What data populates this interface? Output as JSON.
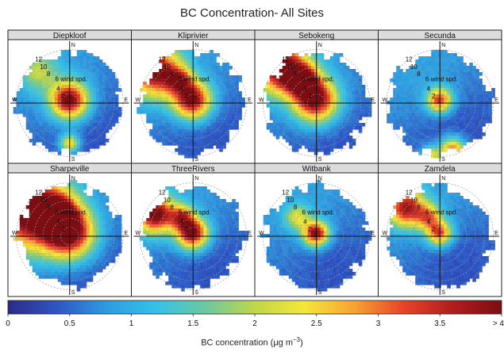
{
  "chart_data": {
    "type": "heatmap",
    "title": "BC Concentration- All Sites",
    "xlabel": "BC concentration",
    "xlabel_unit": "μg m",
    "xlabel_unit_exp": "−3",
    "axis_dirs": {
      "n": "N",
      "s": "S",
      "e": "E",
      "w": "W"
    },
    "wind_label": "6 wind spd.",
    "ring_labels": [
      "2",
      "4",
      "6",
      "8",
      "10",
      "12"
    ],
    "ring_values": [
      2,
      4,
      6,
      8,
      10,
      12
    ],
    "colorbar": {
      "ticks": [
        "0",
        "0.5",
        "1",
        "1.5",
        "2",
        "2.5",
        "3",
        "3.5",
        "> 4"
      ],
      "range": [
        0,
        4
      ],
      "colors": [
        "#2c2a86",
        "#2f56c4",
        "#2f9be0",
        "#34c2e8",
        "#6cc9a0",
        "#c0d64a",
        "#f5e73a",
        "#f6a532",
        "#e8442a",
        "#b01e1e",
        "#7c0d12"
      ]
    },
    "panels": [
      {
        "name": "Diepkloof",
        "hotspots": [
          {
            "dir_deg": 0,
            "speed": 0.5,
            "bc": 4.0,
            "spread": 3
          },
          {
            "dir_deg": 315,
            "speed": 10,
            "bc": 1.8,
            "spread": 3
          },
          {
            "dir_deg": 180,
            "speed": 9,
            "bc": 2.6,
            "spread": 1.5
          }
        ]
      },
      {
        "name": "Kliprivier",
        "hotspots": [
          {
            "dir_deg": 0,
            "speed": 0.5,
            "bc": 3.9,
            "spread": 3
          },
          {
            "dir_deg": 310,
            "speed": 11,
            "bc": 3.8,
            "spread": 4
          },
          {
            "dir_deg": 330,
            "speed": 6,
            "bc": 2.4,
            "spread": 2
          }
        ]
      },
      {
        "name": "Sebokeng",
        "hotspots": [
          {
            "dir_deg": 0,
            "speed": 0.5,
            "bc": 4.0,
            "spread": 3.5
          },
          {
            "dir_deg": 315,
            "speed": 11,
            "bc": 4.0,
            "spread": 4
          },
          {
            "dir_deg": 330,
            "speed": 6,
            "bc": 2.8,
            "spread": 2.5
          }
        ]
      },
      {
        "name": "Secunda",
        "hotspots": [
          {
            "dir_deg": 0,
            "speed": 0.5,
            "bc": 3.2,
            "spread": 2
          },
          {
            "dir_deg": 165,
            "speed": 11,
            "bc": 3.3,
            "spread": 2
          },
          {
            "dir_deg": 190,
            "speed": 12,
            "bc": 2.4,
            "spread": 1.5
          }
        ]
      },
      {
        "name": "Sharpeville",
        "hotspots": [
          {
            "dir_deg": 0,
            "speed": 0.5,
            "bc": 4.0,
            "spread": 4
          },
          {
            "dir_deg": 300,
            "speed": 11,
            "bc": 4.0,
            "spread": 6
          },
          {
            "dir_deg": 330,
            "speed": 6,
            "bc": 3.2,
            "spread": 3
          }
        ]
      },
      {
        "name": "ThreeRivers",
        "hotspots": [
          {
            "dir_deg": 0,
            "speed": 0.5,
            "bc": 3.9,
            "spread": 2.5
          },
          {
            "dir_deg": 300,
            "speed": 10,
            "bc": 4.0,
            "spread": 3
          },
          {
            "dir_deg": 330,
            "speed": 5,
            "bc": 2.6,
            "spread": 2
          }
        ]
      },
      {
        "name": "Witbank",
        "hotspots": [
          {
            "dir_deg": 0,
            "speed": 0.5,
            "bc": 3.8,
            "spread": 2
          },
          {
            "dir_deg": 315,
            "speed": 6,
            "bc": 2.0,
            "spread": 2
          }
        ]
      },
      {
        "name": "Zamdela",
        "hotspots": [
          {
            "dir_deg": 0,
            "speed": 0.5,
            "bc": 3.0,
            "spread": 2
          },
          {
            "dir_deg": 310,
            "speed": 10,
            "bc": 3.5,
            "spread": 3
          },
          {
            "dir_deg": 330,
            "speed": 5,
            "bc": 2.4,
            "spread": 2
          }
        ]
      }
    ]
  }
}
